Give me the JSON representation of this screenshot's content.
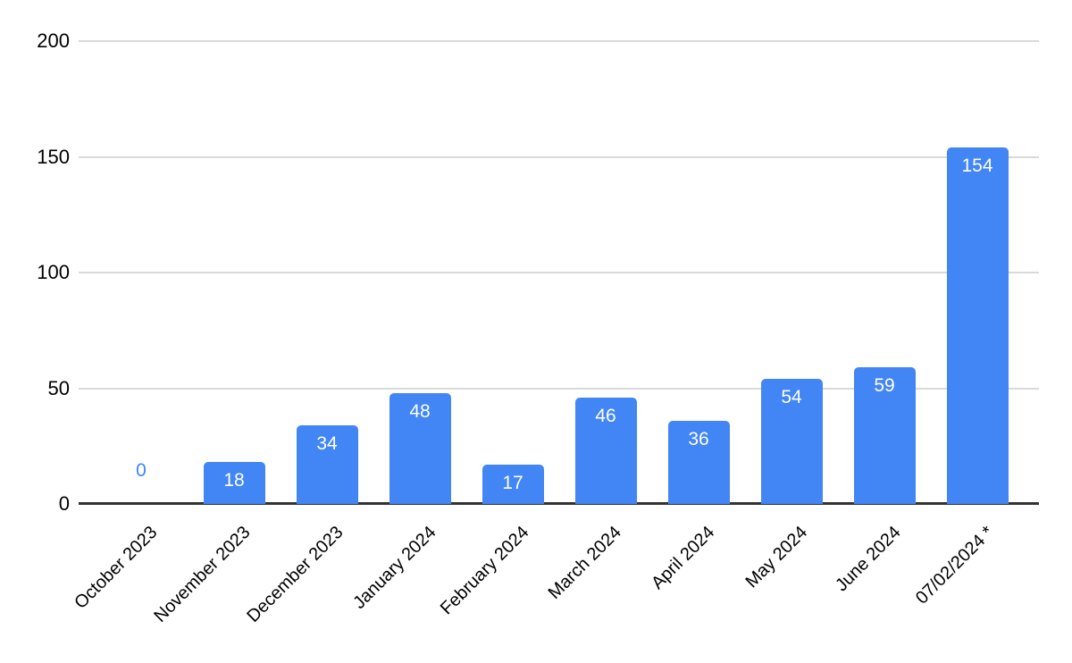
{
  "chart_data": {
    "type": "bar",
    "title": "",
    "categories": [
      "October 2023",
      "November 2023",
      "December 2023",
      "January 2024",
      "February 2024",
      "March 2024",
      "April 2024",
      "May 2024",
      "June 2024",
      "07/02/2024 *"
    ],
    "values": [
      0,
      18,
      34,
      48,
      17,
      46,
      36,
      54,
      59,
      154
    ],
    "xlabel": "",
    "ylabel": "",
    "ylim": [
      0,
      200
    ],
    "yticks": [
      0,
      50,
      100,
      150,
      200
    ],
    "grid": true,
    "legend": false,
    "x_tick_rotation_deg": 45,
    "data_label_placement": "white inside bar top; series-color label above axis when value is 0",
    "colors": {
      "bar": "#4285f4",
      "data_label_inside": "#ffffff",
      "zero_label": "#4285f4",
      "gridline": "#d9d9d9",
      "axis_line": "#333333",
      "tick_text": "#000000",
      "background": "#ffffff"
    }
  }
}
